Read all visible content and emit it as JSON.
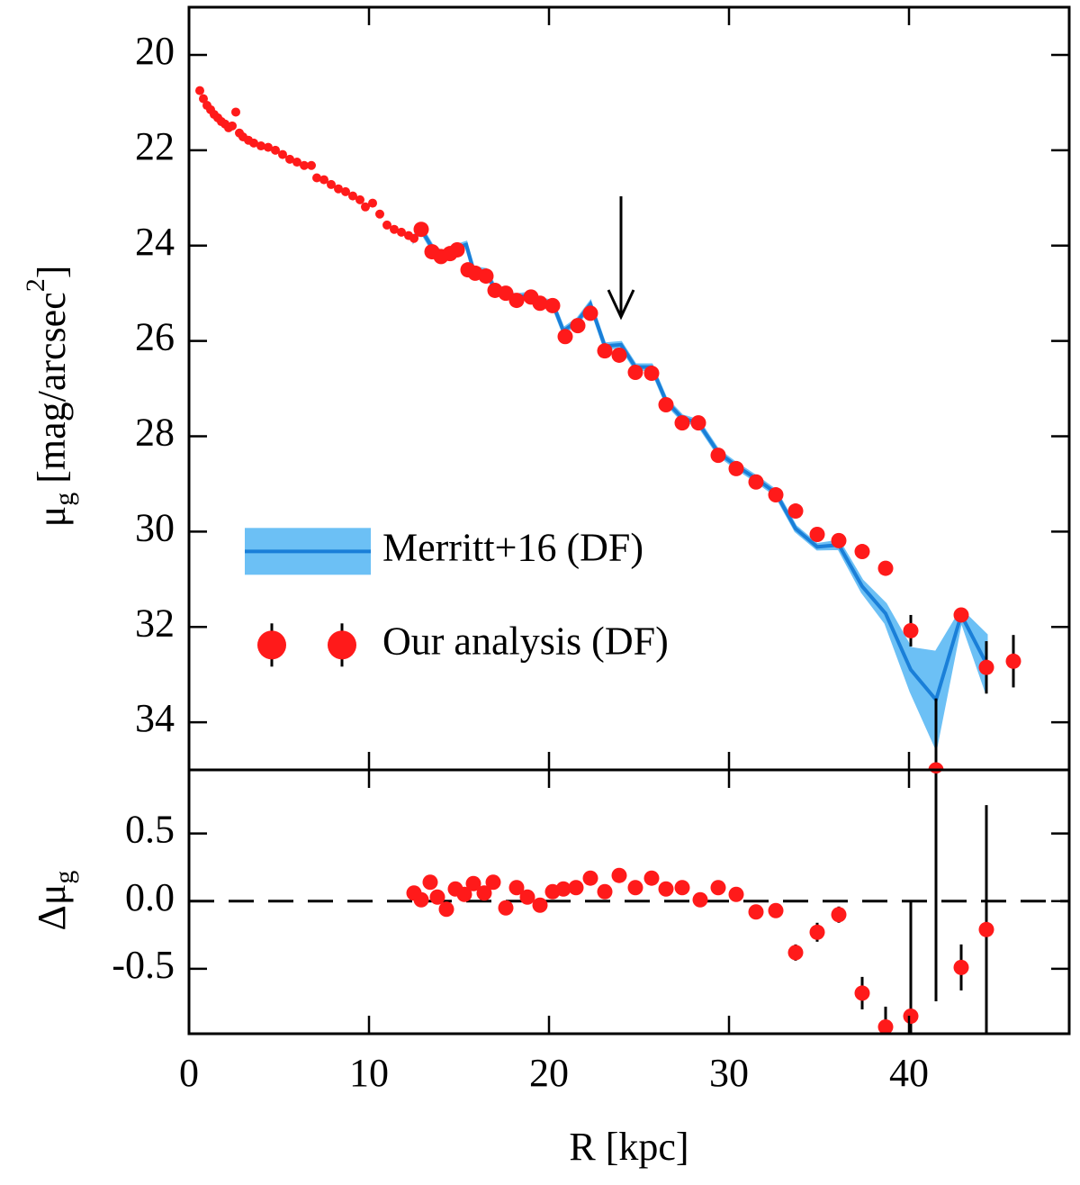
{
  "chart_data": [
    {
      "type": "scatter",
      "ylabel": {
        "symbol": "μ",
        "sub": "g",
        "unit": "[mag/arcsec",
        "sup": "2",
        "close": "]"
      },
      "xlim": [
        0,
        48.9
      ],
      "xticks": [
        0,
        10,
        20,
        30,
        40
      ],
      "ylim": [
        35,
        19
      ],
      "yticks": [
        20,
        22,
        24,
        26,
        28,
        30,
        32,
        34
      ],
      "legend": "lower left",
      "series": [
        {
          "name": "Merritt+16 (DF)",
          "type": "band",
          "color": "#1a7fd8",
          "band_color": "#6cc0f5",
          "x": [
            12.5,
            12.9,
            13.5,
            14.0,
            14.5,
            14.9,
            15.4,
            15.8,
            16.5,
            17.0,
            17.6,
            18.2,
            19.0,
            19.5,
            20.2,
            20.8,
            21.6,
            22.3,
            23.1,
            24.0,
            24.8,
            25.7,
            26.5,
            27.4,
            28.3,
            29.4,
            30.4,
            31.5,
            32.6,
            33.7,
            34.9,
            36.1,
            37.4,
            38.7,
            40.1,
            41.5,
            42.9,
            44.3
          ],
          "values": [
            23.85,
            23.66,
            24.04,
            24.17,
            24.19,
            24.04,
            23.98,
            24.51,
            24.55,
            24.92,
            25.04,
            25.08,
            25.04,
            25.17,
            25.21,
            25.79,
            25.58,
            25.23,
            26.11,
            26.08,
            26.55,
            26.55,
            27.26,
            27.62,
            27.72,
            28.34,
            28.62,
            28.89,
            29.19,
            29.94,
            30.32,
            30.28,
            31.15,
            31.72,
            32.9,
            33.53,
            31.75,
            32.77
          ],
          "spread": [
            0.05,
            0.05,
            0.05,
            0.05,
            0.05,
            0.05,
            0.05,
            0.05,
            0.05,
            0.05,
            0.05,
            0.05,
            0.05,
            0.05,
            0.05,
            0.05,
            0.05,
            0.05,
            0.05,
            0.05,
            0.05,
            0.05,
            0.05,
            0.05,
            0.05,
            0.05,
            0.05,
            0.05,
            0.05,
            0.05,
            0.05,
            0.08,
            0.12,
            0.2,
            0.45,
            1.0,
            0.1,
            0.6
          ]
        },
        {
          "name": "Our analysis (DF)",
          "type": "points",
          "color": "#ff1a1a",
          "x": [
            12.9,
            13.5,
            14.0,
            14.5,
            14.9,
            15.5,
            15.9,
            16.5,
            17.0,
            17.6,
            18.2,
            19.0,
            19.5,
            20.2,
            20.9,
            21.6,
            22.3,
            23.1,
            23.9,
            24.8,
            25.7,
            26.5,
            27.4,
            28.3,
            29.4,
            30.4,
            31.5,
            32.6,
            33.7,
            34.9,
            36.1,
            37.4,
            38.7,
            40.1,
            41.5,
            42.9,
            44.3,
            45.8
          ],
          "values": [
            23.66,
            24.13,
            24.23,
            24.17,
            24.09,
            24.51,
            24.58,
            24.64,
            24.94,
            25.0,
            25.15,
            25.08,
            25.21,
            25.26,
            25.91,
            25.68,
            25.42,
            26.21,
            26.3,
            26.66,
            26.68,
            27.34,
            27.72,
            27.72,
            28.4,
            28.68,
            28.96,
            29.23,
            29.57,
            30.06,
            30.19,
            30.42,
            30.77,
            32.08,
            35.0,
            31.75,
            32.85,
            32.72
          ],
          "errors": [
            null,
            null,
            null,
            null,
            null,
            null,
            null,
            null,
            null,
            null,
            null,
            null,
            null,
            null,
            null,
            null,
            null,
            null,
            null,
            null,
            null,
            null,
            null,
            null,
            null,
            null,
            null,
            null,
            null,
            null,
            null,
            null,
            null,
            0.33,
            1.5,
            0.15,
            0.55,
            0.55
          ]
        },
        {
          "type": "points",
          "marker": "small",
          "color": "#ff1a1a",
          "x": [
            0.6,
            0.8,
            1.0,
            1.2,
            1.4,
            1.6,
            1.8,
            2.0,
            2.2,
            2.4,
            2.6,
            2.8,
            3.0,
            3.3,
            3.6,
            4.0,
            4.4,
            4.8,
            5.2,
            5.6,
            6.0,
            6.4,
            6.8,
            7.1,
            7.5,
            7.9,
            8.3,
            8.7,
            9.1,
            9.5,
            9.8,
            10.2,
            10.6,
            11.0,
            11.4,
            11.8,
            12.2,
            12.5
          ],
          "values": [
            20.75,
            20.92,
            21.06,
            21.15,
            21.25,
            21.32,
            21.4,
            21.45,
            21.53,
            21.49,
            21.2,
            21.64,
            21.72,
            21.79,
            21.85,
            21.91,
            21.94,
            22.0,
            22.09,
            22.19,
            22.25,
            22.32,
            22.32,
            22.58,
            22.62,
            22.72,
            22.81,
            22.87,
            22.96,
            23.04,
            23.19,
            23.11,
            23.34,
            23.57,
            23.66,
            23.72,
            23.79,
            23.85
          ]
        }
      ]
    },
    {
      "type": "scatter",
      "xlabel": "R [kpc]",
      "ylabel": {
        "symbol": "Δμ",
        "sub": "g"
      },
      "xlim": [
        0,
        48.9
      ],
      "xticks": [
        0,
        10,
        20,
        30,
        40
      ],
      "ylim": [
        -0.98,
        0.97
      ],
      "yticks": [
        -0.5,
        {
          "value": 0,
          "label": "0.0"
        },
        0.5
      ],
      "reference": 0,
      "series": [
        {
          "type": "points",
          "color": "#ff1a1a",
          "x": [
            12.5,
            12.9,
            13.4,
            13.8,
            14.3,
            14.8,
            15.3,
            15.8,
            16.4,
            16.9,
            17.6,
            18.2,
            18.8,
            19.5,
            20.2,
            20.8,
            21.5,
            22.3,
            23.1,
            23.9,
            24.8,
            25.7,
            26.5,
            27.4,
            28.4,
            29.4,
            30.4,
            31.5,
            32.6,
            33.7,
            34.9,
            36.1,
            37.4,
            38.7,
            40.1,
            41.5,
            42.9,
            44.3
          ],
          "values": [
            0.06,
            0.01,
            0.14,
            0.03,
            -0.06,
            0.09,
            0.05,
            0.13,
            0.06,
            0.14,
            -0.05,
            0.1,
            0.03,
            -0.03,
            0.07,
            0.09,
            0.1,
            0.17,
            0.07,
            0.19,
            0.1,
            0.17,
            0.09,
            0.1,
            0.01,
            0.1,
            0.05,
            -0.08,
            -0.07,
            -0.38,
            -0.23,
            -0.1,
            -0.68,
            -0.93,
            -0.85,
            1.0,
            -0.49,
            -0.21
          ],
          "errors": [
            0.05,
            0.05,
            0.05,
            0.05,
            0.05,
            0.05,
            0.05,
            0.05,
            0.05,
            0.05,
            0.05,
            0.05,
            0.05,
            0.05,
            0.05,
            0.05,
            0.05,
            0.05,
            0.05,
            0.05,
            0.05,
            0.05,
            0.05,
            0.05,
            0.05,
            0.05,
            0.05,
            0.05,
            0.05,
            0.06,
            0.07,
            0.06,
            0.12,
            0.15,
            0.85,
            1.74,
            0.17,
            0.92
          ]
        }
      ]
    }
  ]
}
